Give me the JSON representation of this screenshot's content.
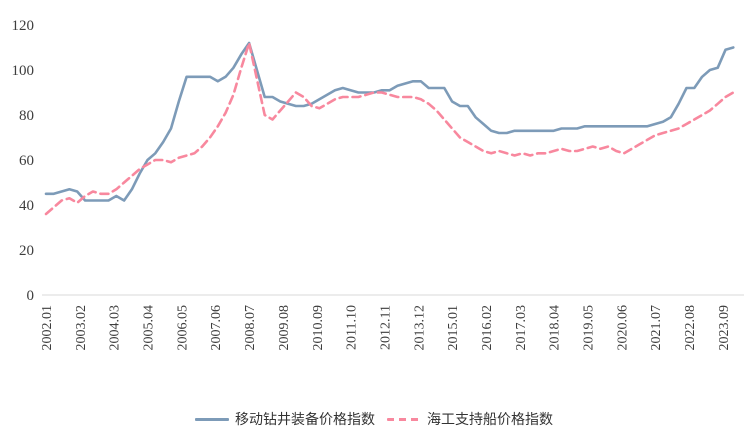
{
  "chart_data": {
    "type": "line",
    "title": "",
    "xlabel": "",
    "ylabel": "",
    "x_range": [
      2002,
      2024.15
    ],
    "y_range": [
      0,
      120
    ],
    "y_ticks": [
      0,
      20,
      40,
      60,
      80,
      100,
      120
    ],
    "x_ticks": [
      "2002.01",
      "2003.02",
      "2004.03",
      "2005.04",
      "2006.05",
      "2007.06",
      "2008.07",
      "2009.08",
      "2010.09",
      "2011.10",
      "2012.11",
      "2013.12",
      "2015.01",
      "2016.02",
      "2017.03",
      "2018.04",
      "2019.05",
      "2020.06",
      "2021.07",
      "2022.08",
      "2023.09"
    ],
    "x_start": 2002.0,
    "x_step": 0.25,
    "grid": false,
    "legend_position": "bottom",
    "axis_line_color": "#d9d9d9",
    "series": [
      {
        "name": "移动钻井装备价格指数",
        "color": "#7d9bb8",
        "style": "solid",
        "dash": "",
        "values": [
          45,
          45,
          46,
          47,
          46,
          42,
          42,
          42,
          42,
          44,
          42,
          47,
          54,
          60,
          63,
          68,
          74,
          86,
          97,
          97,
          97,
          97,
          95,
          97,
          101,
          107,
          112,
          100,
          88,
          88,
          86,
          85,
          84,
          84,
          85,
          87,
          89,
          91,
          92,
          91,
          90,
          90,
          90,
          91,
          91,
          93,
          94,
          95,
          95,
          92,
          92,
          92,
          86,
          84,
          84,
          79,
          76,
          73,
          72,
          72,
          73,
          73,
          73,
          73,
          73,
          73,
          74,
          74,
          74,
          75,
          75,
          75,
          75,
          75,
          75,
          75,
          75,
          75,
          76,
          77,
          79,
          85,
          92,
          92,
          97,
          100,
          101,
          109,
          110
        ]
      },
      {
        "name": "海工支持船价格指数",
        "color": "#f8889e",
        "style": "dashed",
        "dash": "8 5",
        "values": [
          36,
          39,
          42,
          43,
          41,
          44,
          46,
          45,
          45,
          47,
          50,
          53,
          56,
          58,
          60,
          60,
          59,
          61,
          62,
          63,
          66,
          70,
          75,
          81,
          89,
          101,
          112,
          96,
          80,
          78,
          82,
          86,
          90,
          88,
          84,
          83,
          85,
          87,
          88,
          88,
          88,
          89,
          90,
          90,
          89,
          88,
          88,
          88,
          87,
          85,
          82,
          78,
          74,
          70,
          68,
          66,
          64,
          63,
          64,
          63,
          62,
          63,
          62,
          63,
          63,
          64,
          65,
          64,
          64,
          65,
          66,
          65,
          66,
          64,
          63,
          65,
          67,
          69,
          71,
          72,
          73,
          74,
          76,
          78,
          80,
          82,
          85,
          88,
          90
        ]
      }
    ]
  }
}
